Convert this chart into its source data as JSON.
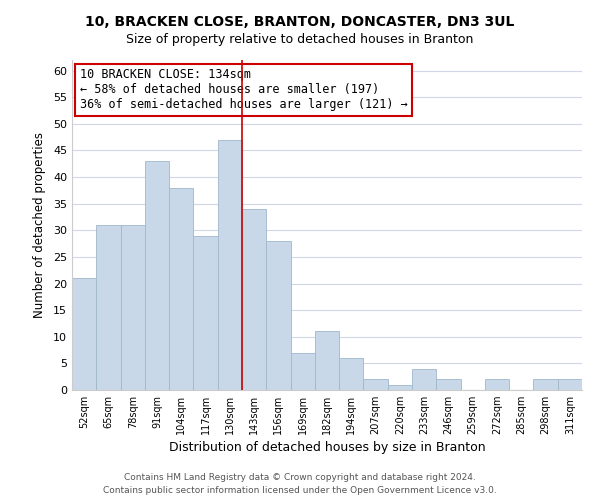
{
  "title": "10, BRACKEN CLOSE, BRANTON, DONCASTER, DN3 3UL",
  "subtitle": "Size of property relative to detached houses in Branton",
  "xlabel": "Distribution of detached houses by size in Branton",
  "ylabel": "Number of detached properties",
  "bar_labels": [
    "52sqm",
    "65sqm",
    "78sqm",
    "91sqm",
    "104sqm",
    "117sqm",
    "130sqm",
    "143sqm",
    "156sqm",
    "169sqm",
    "182sqm",
    "194sqm",
    "207sqm",
    "220sqm",
    "233sqm",
    "246sqm",
    "259sqm",
    "272sqm",
    "285sqm",
    "298sqm",
    "311sqm"
  ],
  "bar_values": [
    21,
    31,
    31,
    43,
    38,
    29,
    47,
    34,
    28,
    7,
    11,
    6,
    2,
    1,
    4,
    2,
    0,
    2,
    0,
    2,
    2
  ],
  "bar_color": "#c8d8e8",
  "bar_edge_color": "#a0b8cc",
  "grid_color": "#d0d8e8",
  "reference_line_bin": 6,
  "reference_line_color": "#cc0000",
  "annotation_text": "10 BRACKEN CLOSE: 134sqm\n← 58% of detached houses are smaller (197)\n36% of semi-detached houses are larger (121) →",
  "annotation_box_color": "#ffffff",
  "annotation_box_edge_color": "#cc0000",
  "ylim": [
    0,
    62
  ],
  "yticks": [
    0,
    5,
    10,
    15,
    20,
    25,
    30,
    35,
    40,
    45,
    50,
    55,
    60
  ],
  "footer_line1": "Contains HM Land Registry data © Crown copyright and database right 2024.",
  "footer_line2": "Contains public sector information licensed under the Open Government Licence v3.0.",
  "fig_width": 6.0,
  "fig_height": 5.0
}
